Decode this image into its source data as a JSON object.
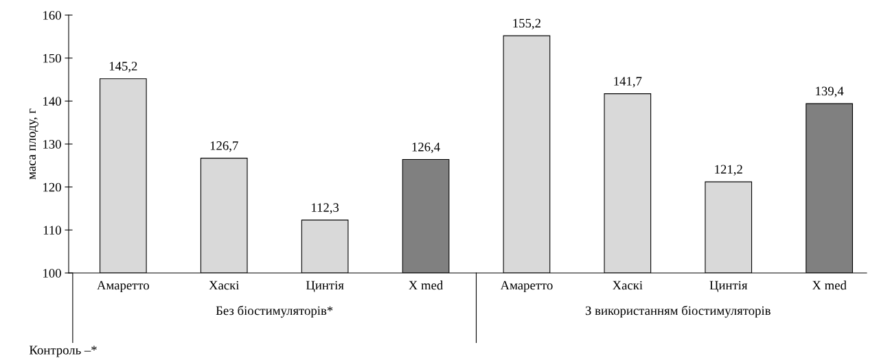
{
  "chart_data": {
    "type": "bar",
    "ylabel": "маса плоду, г",
    "categories": [
      "Амаретто",
      "Хаскі",
      "Цинтія",
      "X med",
      "Амаретто",
      "Хаскі",
      "Цинтія",
      "X med"
    ],
    "values": [
      145.2,
      126.7,
      112.3,
      126.4,
      155.2,
      141.7,
      121.2,
      139.4
    ],
    "colors": [
      "#d9d9d9",
      "#d9d9d9",
      "#d9d9d9",
      "#808080",
      "#d9d9d9",
      "#d9d9d9",
      "#d9d9d9",
      "#808080"
    ],
    "value_labels": [
      "145,2",
      "126,7",
      "112,3",
      "126,4",
      "155,2",
      "141,7",
      "121,2",
      "139,4"
    ],
    "ylim": [
      100,
      160
    ],
    "yticks": [
      100,
      110,
      120,
      130,
      140,
      150,
      160
    ],
    "grid": false,
    "legend": false,
    "annotations": [
      "Без біостимуляторів*",
      "З використанням біостимуляторів",
      "Контроль –*"
    ]
  }
}
